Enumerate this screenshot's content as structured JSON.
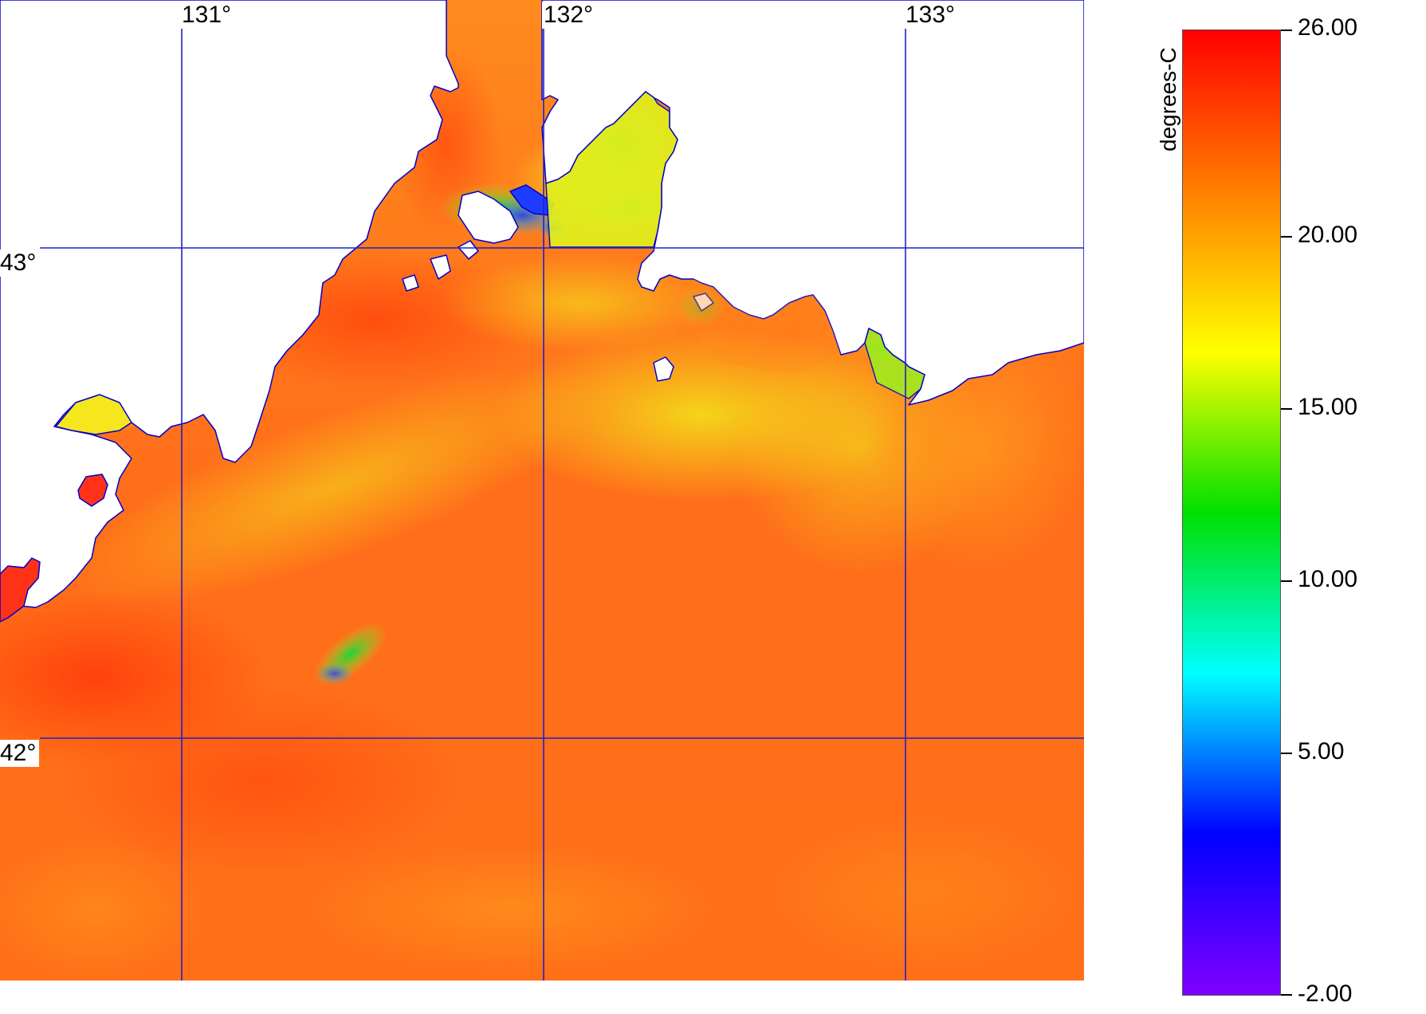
{
  "map": {
    "longitude_labels": [
      "131°",
      "132°",
      "133°"
    ],
    "latitude_labels": [
      "43°",
      "42°"
    ],
    "colors": {
      "land": "#ffffff",
      "coastline": "#0000cc",
      "graticule": "#1a1acc",
      "warm_water": "#ff5a14",
      "mid_water": "#ff8c1e",
      "cool_water": "#e8e81e"
    }
  },
  "colorbar": {
    "units": "degrees-C",
    "ticks": [
      "26.00",
      "20.00",
      "15.00",
      "10.00",
      "5.00",
      "-2.00"
    ],
    "range": [
      -2,
      26
    ],
    "gradient": [
      "#ff0000",
      "#ff7f00",
      "#ffff00",
      "#00e000",
      "#00ffff",
      "#0000ff",
      "#8000ff"
    ]
  }
}
